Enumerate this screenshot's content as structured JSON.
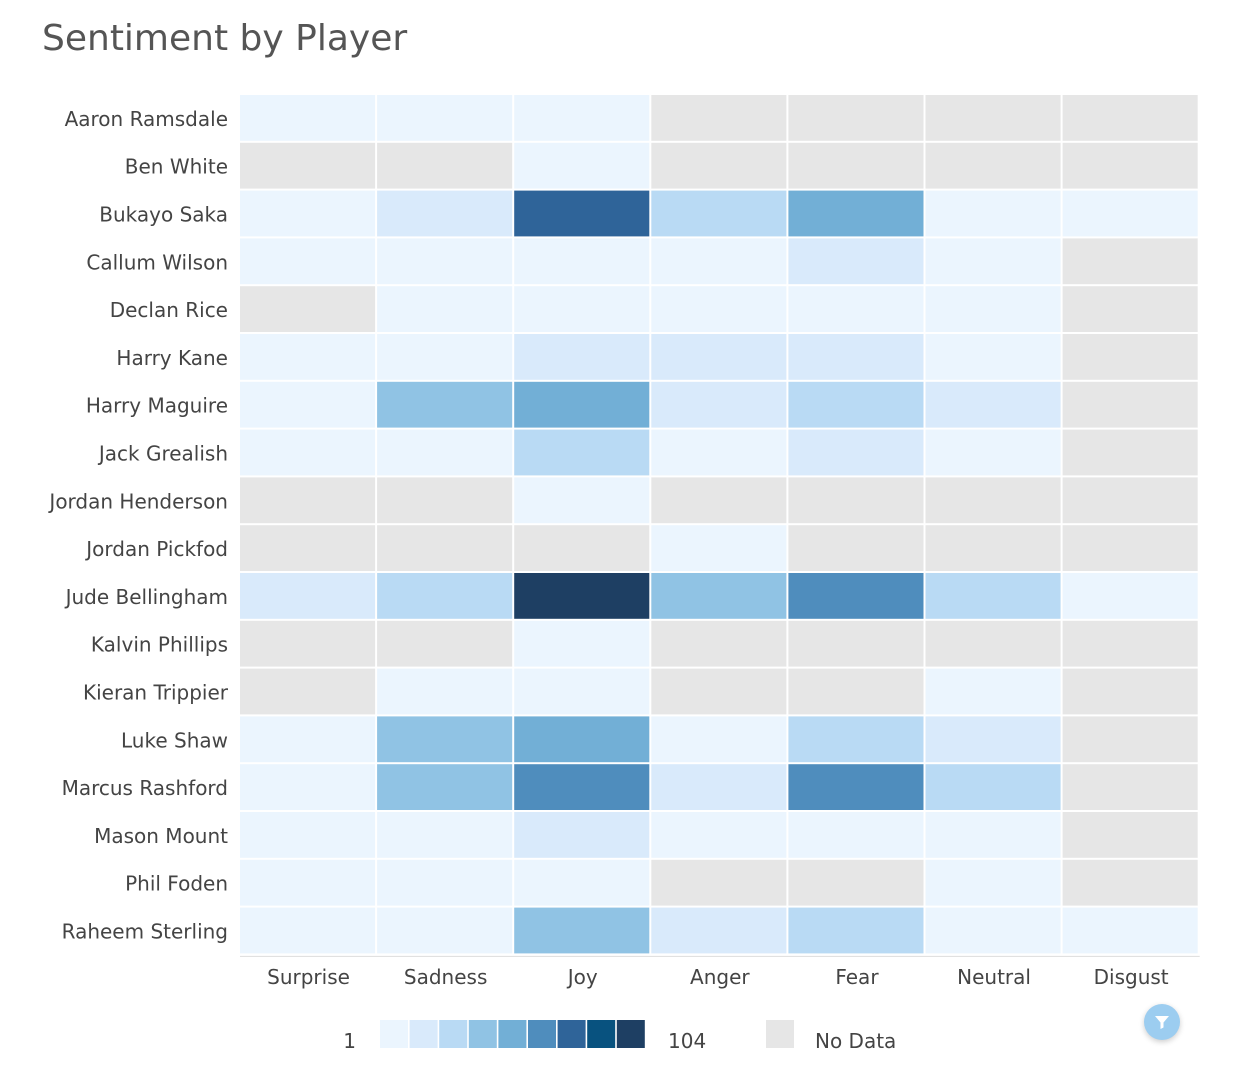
{
  "chart_data": {
    "type": "heatmap",
    "title": "Sentiment by Player",
    "columns": [
      "Surprise",
      "Sadness",
      "Joy",
      "Anger",
      "Fear",
      "Neutral",
      "Disgust"
    ],
    "rows": [
      "Aaron Ramsdale",
      "Ben White",
      "Bukayo Saka",
      "Callum Wilson",
      "Declan Rice",
      "Harry Kane",
      "Harry Maguire",
      "Jack Grealish",
      "Jordan Henderson",
      "Jordan Pickfod",
      "Jude Bellingham",
      "Kalvin Phillips",
      "Kieran Trippier",
      "Luke Shaw",
      "Marcus Rashford",
      "Mason Mount",
      "Phil Foden",
      "Raheem Sterling"
    ],
    "values": [
      [
        1,
        5,
        5,
        null,
        null,
        null,
        null
      ],
      [
        null,
        null,
        5,
        null,
        null,
        null,
        null
      ],
      [
        5,
        17,
        80,
        30,
        55,
        5,
        3
      ],
      [
        5,
        5,
        5,
        5,
        17,
        5,
        null
      ],
      [
        null,
        5,
        5,
        5,
        5,
        5,
        null
      ],
      [
        5,
        5,
        17,
        17,
        17,
        5,
        null
      ],
      [
        5,
        42,
        55,
        17,
        30,
        17,
        null
      ],
      [
        5,
        5,
        30,
        5,
        17,
        5,
        null
      ],
      [
        null,
        null,
        5,
        null,
        null,
        null,
        null
      ],
      [
        null,
        null,
        null,
        5,
        null,
        null,
        null
      ],
      [
        17,
        30,
        104,
        42,
        67,
        30,
        5
      ],
      [
        null,
        null,
        5,
        null,
        null,
        null,
        null
      ],
      [
        null,
        5,
        5,
        null,
        null,
        5,
        null
      ],
      [
        5,
        42,
        55,
        5,
        30,
        17,
        null
      ],
      [
        5,
        42,
        67,
        17,
        67,
        30,
        null
      ],
      [
        5,
        5,
        17,
        5,
        5,
        5,
        null
      ],
      [
        5,
        5,
        5,
        null,
        null,
        5,
        null
      ],
      [
        5,
        5,
        42,
        17,
        30,
        5,
        5
      ]
    ],
    "legend": {
      "min_label": "1",
      "max_label": "104",
      "min": 1,
      "max": 104,
      "no_data_label": "No Data",
      "position": "bottom"
    },
    "colors": [
      "#ebf5fe",
      "#d9eafb",
      "#b9daf4",
      "#90c3e4",
      "#72afd6",
      "#4f8dbd",
      "#2f6499",
      "#08527f",
      "#1e3f63"
    ],
    "no_data_color": "#e6e6e6"
  },
  "filter_icon": "filter-icon"
}
